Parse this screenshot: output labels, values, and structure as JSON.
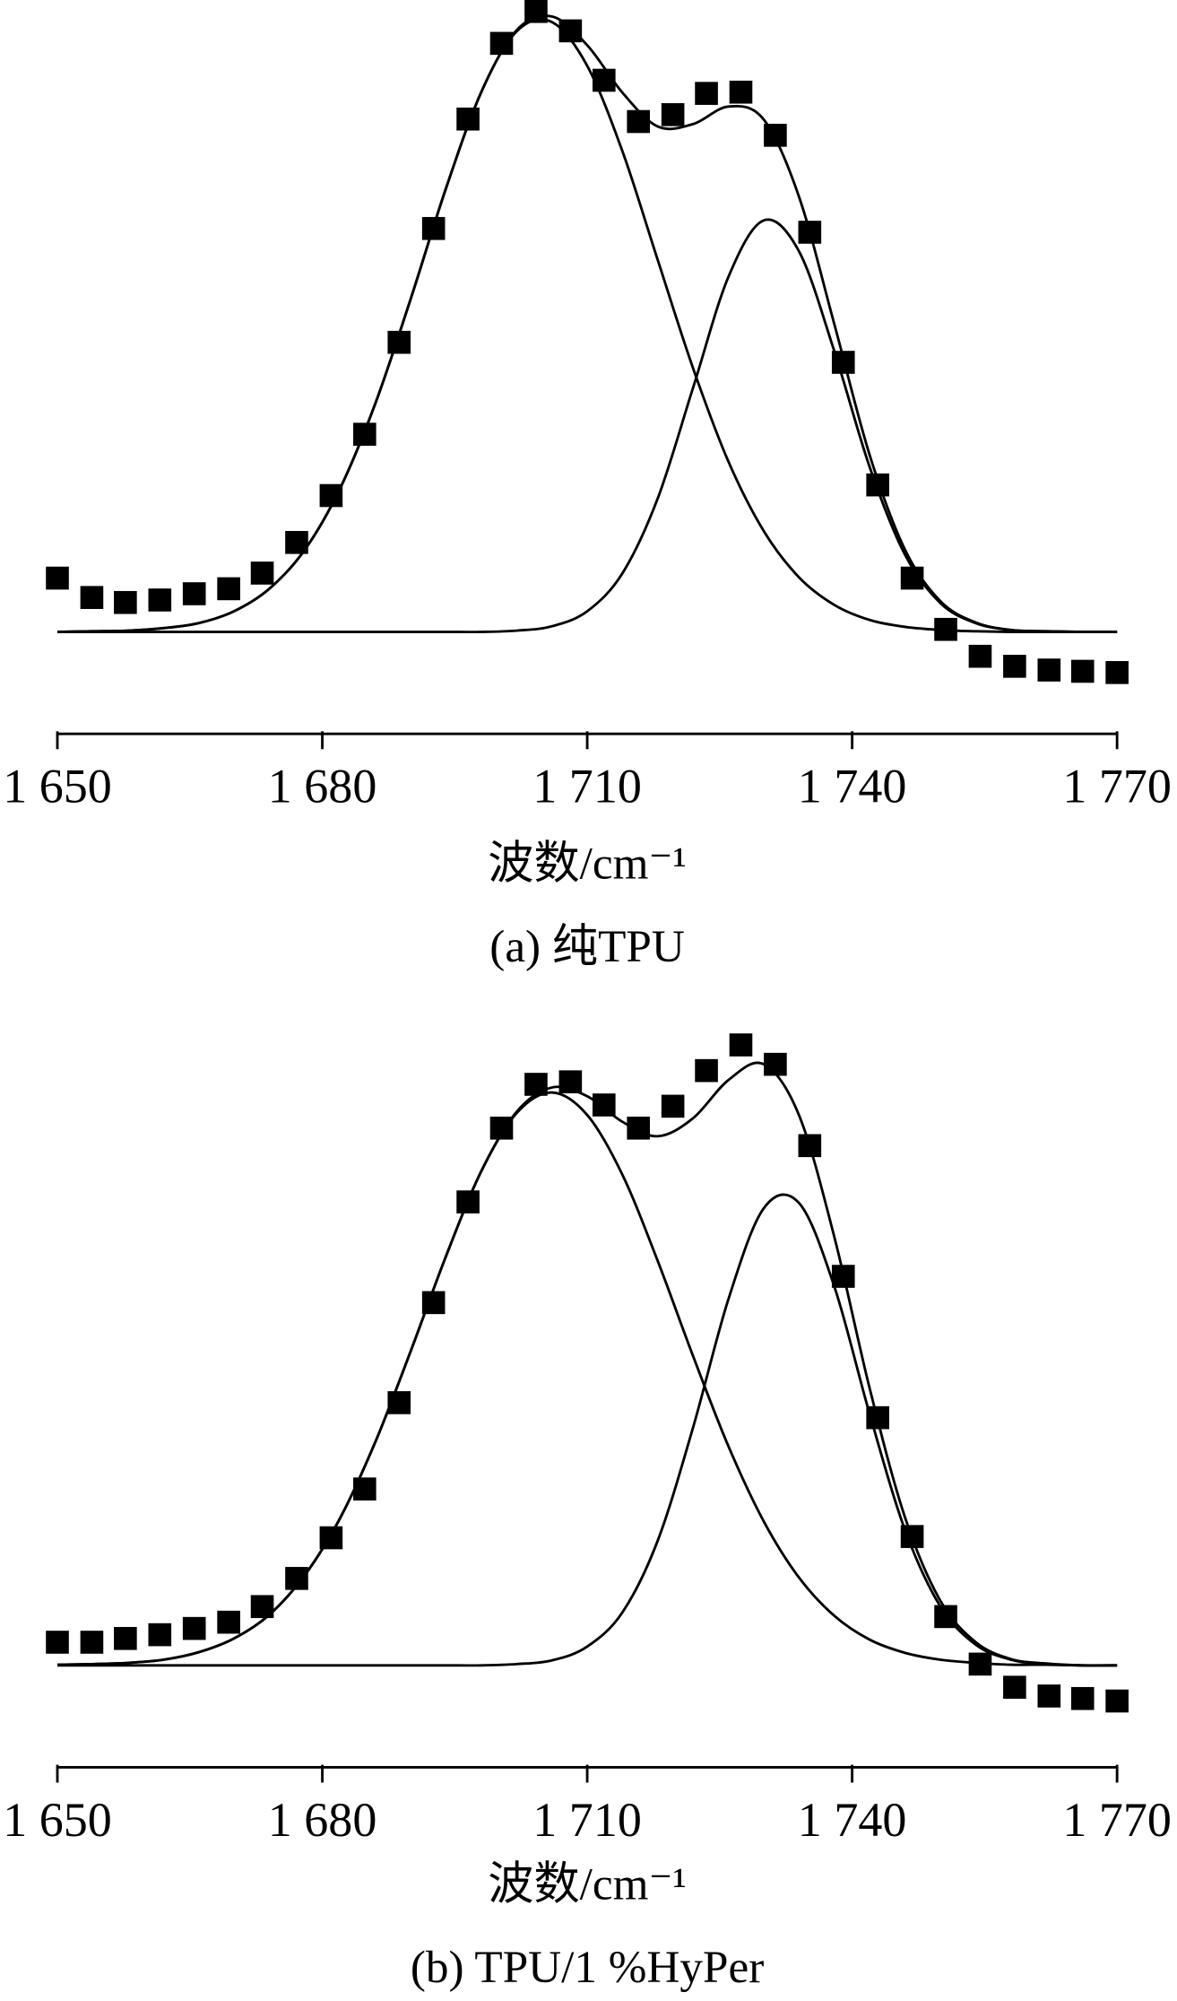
{
  "chart_data": [
    {
      "type": "scatter",
      "caption": "(a) 纯TPU",
      "xlabel": "波数/cm⁻¹",
      "color": "#000000",
      "x": [
        1650,
        1653.9,
        1657.7,
        1661.6,
        1665.5,
        1669.4,
        1673.2,
        1677.1,
        1681.0,
        1684.8,
        1688.7,
        1692.6,
        1696.5,
        1700.3,
        1704.2,
        1708.1,
        1711.9,
        1715.8,
        1719.7,
        1723.5,
        1727.4,
        1731.3,
        1735.2,
        1739.0,
        1742.9,
        1746.8,
        1750.6,
        1754.5,
        1758.4,
        1762.3,
        1766.1,
        1770
      ],
      "values": [
        8.6,
        5.5,
        4.7,
        5.1,
        6.1,
        6.9,
        9.4,
        14.3,
        21.8,
        31.6,
        46.3,
        64.5,
        82.0,
        94.1,
        99.2,
        96.1,
        88.2,
        81.6,
        82.7,
        86.1,
        86.3,
        79.4,
        63.9,
        43.1,
        23.5,
        8.6,
        0.4,
        -3.9,
        -5.5,
        -6.1,
        -6.3,
        -6.5
      ],
      "curves": {
        "x": [
          1650,
          1654,
          1658,
          1662,
          1666,
          1670,
          1674,
          1678,
          1682,
          1686,
          1690,
          1694,
          1698,
          1702,
          1706,
          1710,
          1714,
          1718,
          1722,
          1726,
          1730,
          1734,
          1738,
          1742,
          1746,
          1750,
          1754,
          1758,
          1762,
          1766,
          1770
        ],
        "series": [
          {
            "color": "#000000",
            "values": [
              0,
              0.1,
              0.2,
              0.6,
              1.4,
              3.3,
              6.9,
              13.1,
              22.9,
              36.5,
              53.2,
              70.9,
              86.3,
              96.0,
              97.5,
              90.5,
              76.8,
              59.4,
              42.1,
              27.2,
              16.1,
              8.7,
              4.3,
              1.9,
              0.8,
              0.3,
              0.1,
              0,
              0,
              0,
              0
            ]
          },
          {
            "color": "#000000",
            "values": [
              0,
              0,
              0,
              0,
              0,
              0,
              0,
              0,
              0,
              0,
              0,
              0,
              0,
              0.2,
              0.9,
              3.3,
              9.4,
              21.4,
              39.1,
              56.8,
              65.8,
              60.8,
              44.8,
              26.3,
              12.3,
              4.6,
              1.4,
              0.3,
              0.1,
              0,
              0
            ]
          },
          {
            "color": "#000000",
            "values": [
              0,
              0.1,
              0.2,
              0.6,
              1.4,
              3.3,
              6.9,
              13.1,
              22.9,
              36.5,
              53.2,
              70.9,
              86.3,
              96.2,
              98.4,
              93.8,
              86.2,
              80.8,
              81.2,
              84.0,
              81.9,
              69.5,
              49.1,
              28.2,
              13.1,
              4.9,
              1.5,
              0.3,
              0.1,
              0,
              0
            ]
          }
        ]
      },
      "xlim": [
        1650,
        1770
      ],
      "xticks": [
        {
          "value": 1650,
          "label": "1 650"
        },
        {
          "value": 1680,
          "label": "1 680"
        },
        {
          "value": 1710,
          "label": "1 710"
        },
        {
          "value": 1740,
          "label": "1 740"
        },
        {
          "value": 1770,
          "label": "1 770"
        }
      ],
      "ylim": [
        -16.3,
        101
      ]
    },
    {
      "type": "scatter",
      "caption": "(b) TPU/1 %HyPer",
      "xlabel": "波数/cm⁻¹",
      "color": "#000000",
      "x": [
        1650,
        1653.9,
        1657.7,
        1661.6,
        1665.5,
        1669.4,
        1673.2,
        1677.1,
        1681.0,
        1684.8,
        1688.7,
        1692.6,
        1696.5,
        1700.3,
        1704.2,
        1708.1,
        1711.9,
        1715.8,
        1719.7,
        1723.5,
        1727.4,
        1731.3,
        1735.2,
        1739.0,
        1742.9,
        1746.8,
        1750.6,
        1754.5,
        1758.4,
        1762.3,
        1766.1,
        1770
      ],
      "values": [
        3.7,
        3.7,
        4.3,
        4.9,
        5.9,
        6.9,
        9.4,
        13.9,
        20.4,
        28.2,
        42.0,
        58.0,
        74.1,
        85.9,
        92.9,
        93.3,
        89.6,
        85.9,
        89.4,
        95.1,
        99.2,
        96.1,
        83.1,
        62.2,
        39.6,
        20.6,
        7.8,
        0.2,
        -3.5,
        -4.9,
        -5.3,
        -5.7
      ],
      "curves": {
        "x": [
          1650,
          1654,
          1658,
          1662,
          1666,
          1670,
          1674,
          1678,
          1682,
          1686,
          1690,
          1694,
          1698,
          1702,
          1706,
          1710,
          1714,
          1718,
          1722,
          1726,
          1730,
          1734,
          1738,
          1742,
          1746,
          1750,
          1754,
          1758,
          1762,
          1766,
          1770
        ],
        "series": [
          {
            "color": "#000000",
            "values": [
              0.1,
              0.2,
              0.4,
              0.9,
              2.1,
              4.3,
              8.1,
              14.4,
              23.5,
              35.7,
              50.2,
              65.4,
              79.0,
              88.3,
              91.6,
              88.0,
              78.4,
              64.6,
              49.4,
              35.0,
              23.0,
              14.0,
              7.9,
              4.1,
              2.0,
              0.9,
              0.4,
              0.1,
              0.1,
              0,
              0
            ]
          },
          {
            "color": "#000000",
            "values": [
              0,
              0,
              0,
              0,
              0,
              0,
              0,
              0,
              0,
              0,
              0,
              0,
              0,
              0.2,
              0.8,
              3.0,
              8.5,
              20.0,
              38.1,
              58.6,
              73.1,
              73.9,
              60.5,
              40.1,
              21.6,
              9.4,
              3.3,
              0.9,
              0.2,
              0,
              0
            ]
          },
          {
            "color": "#000000",
            "values": [
              0.1,
              0.2,
              0.4,
              0.9,
              2.1,
              4.3,
              8.1,
              14.4,
              23.5,
              35.7,
              50.2,
              65.4,
              79.0,
              88.5,
              92.4,
              91.0,
              86.9,
              84.6,
              87.5,
              93.6,
              96.1,
              87.9,
              68.4,
              44.2,
              23.6,
              10.3,
              3.7,
              1.0,
              0.3,
              0,
              0
            ]
          }
        ]
      },
      "xlim": [
        1650,
        1770
      ],
      "xticks": [
        {
          "value": 1650,
          "label": "1 650"
        },
        {
          "value": 1680,
          "label": "1 680"
        },
        {
          "value": 1710,
          "label": "1 710"
        },
        {
          "value": 1740,
          "label": "1 740"
        },
        {
          "value": 1770,
          "label": "1 770"
        }
      ],
      "ylim": [
        -16.3,
        101
      ]
    }
  ]
}
